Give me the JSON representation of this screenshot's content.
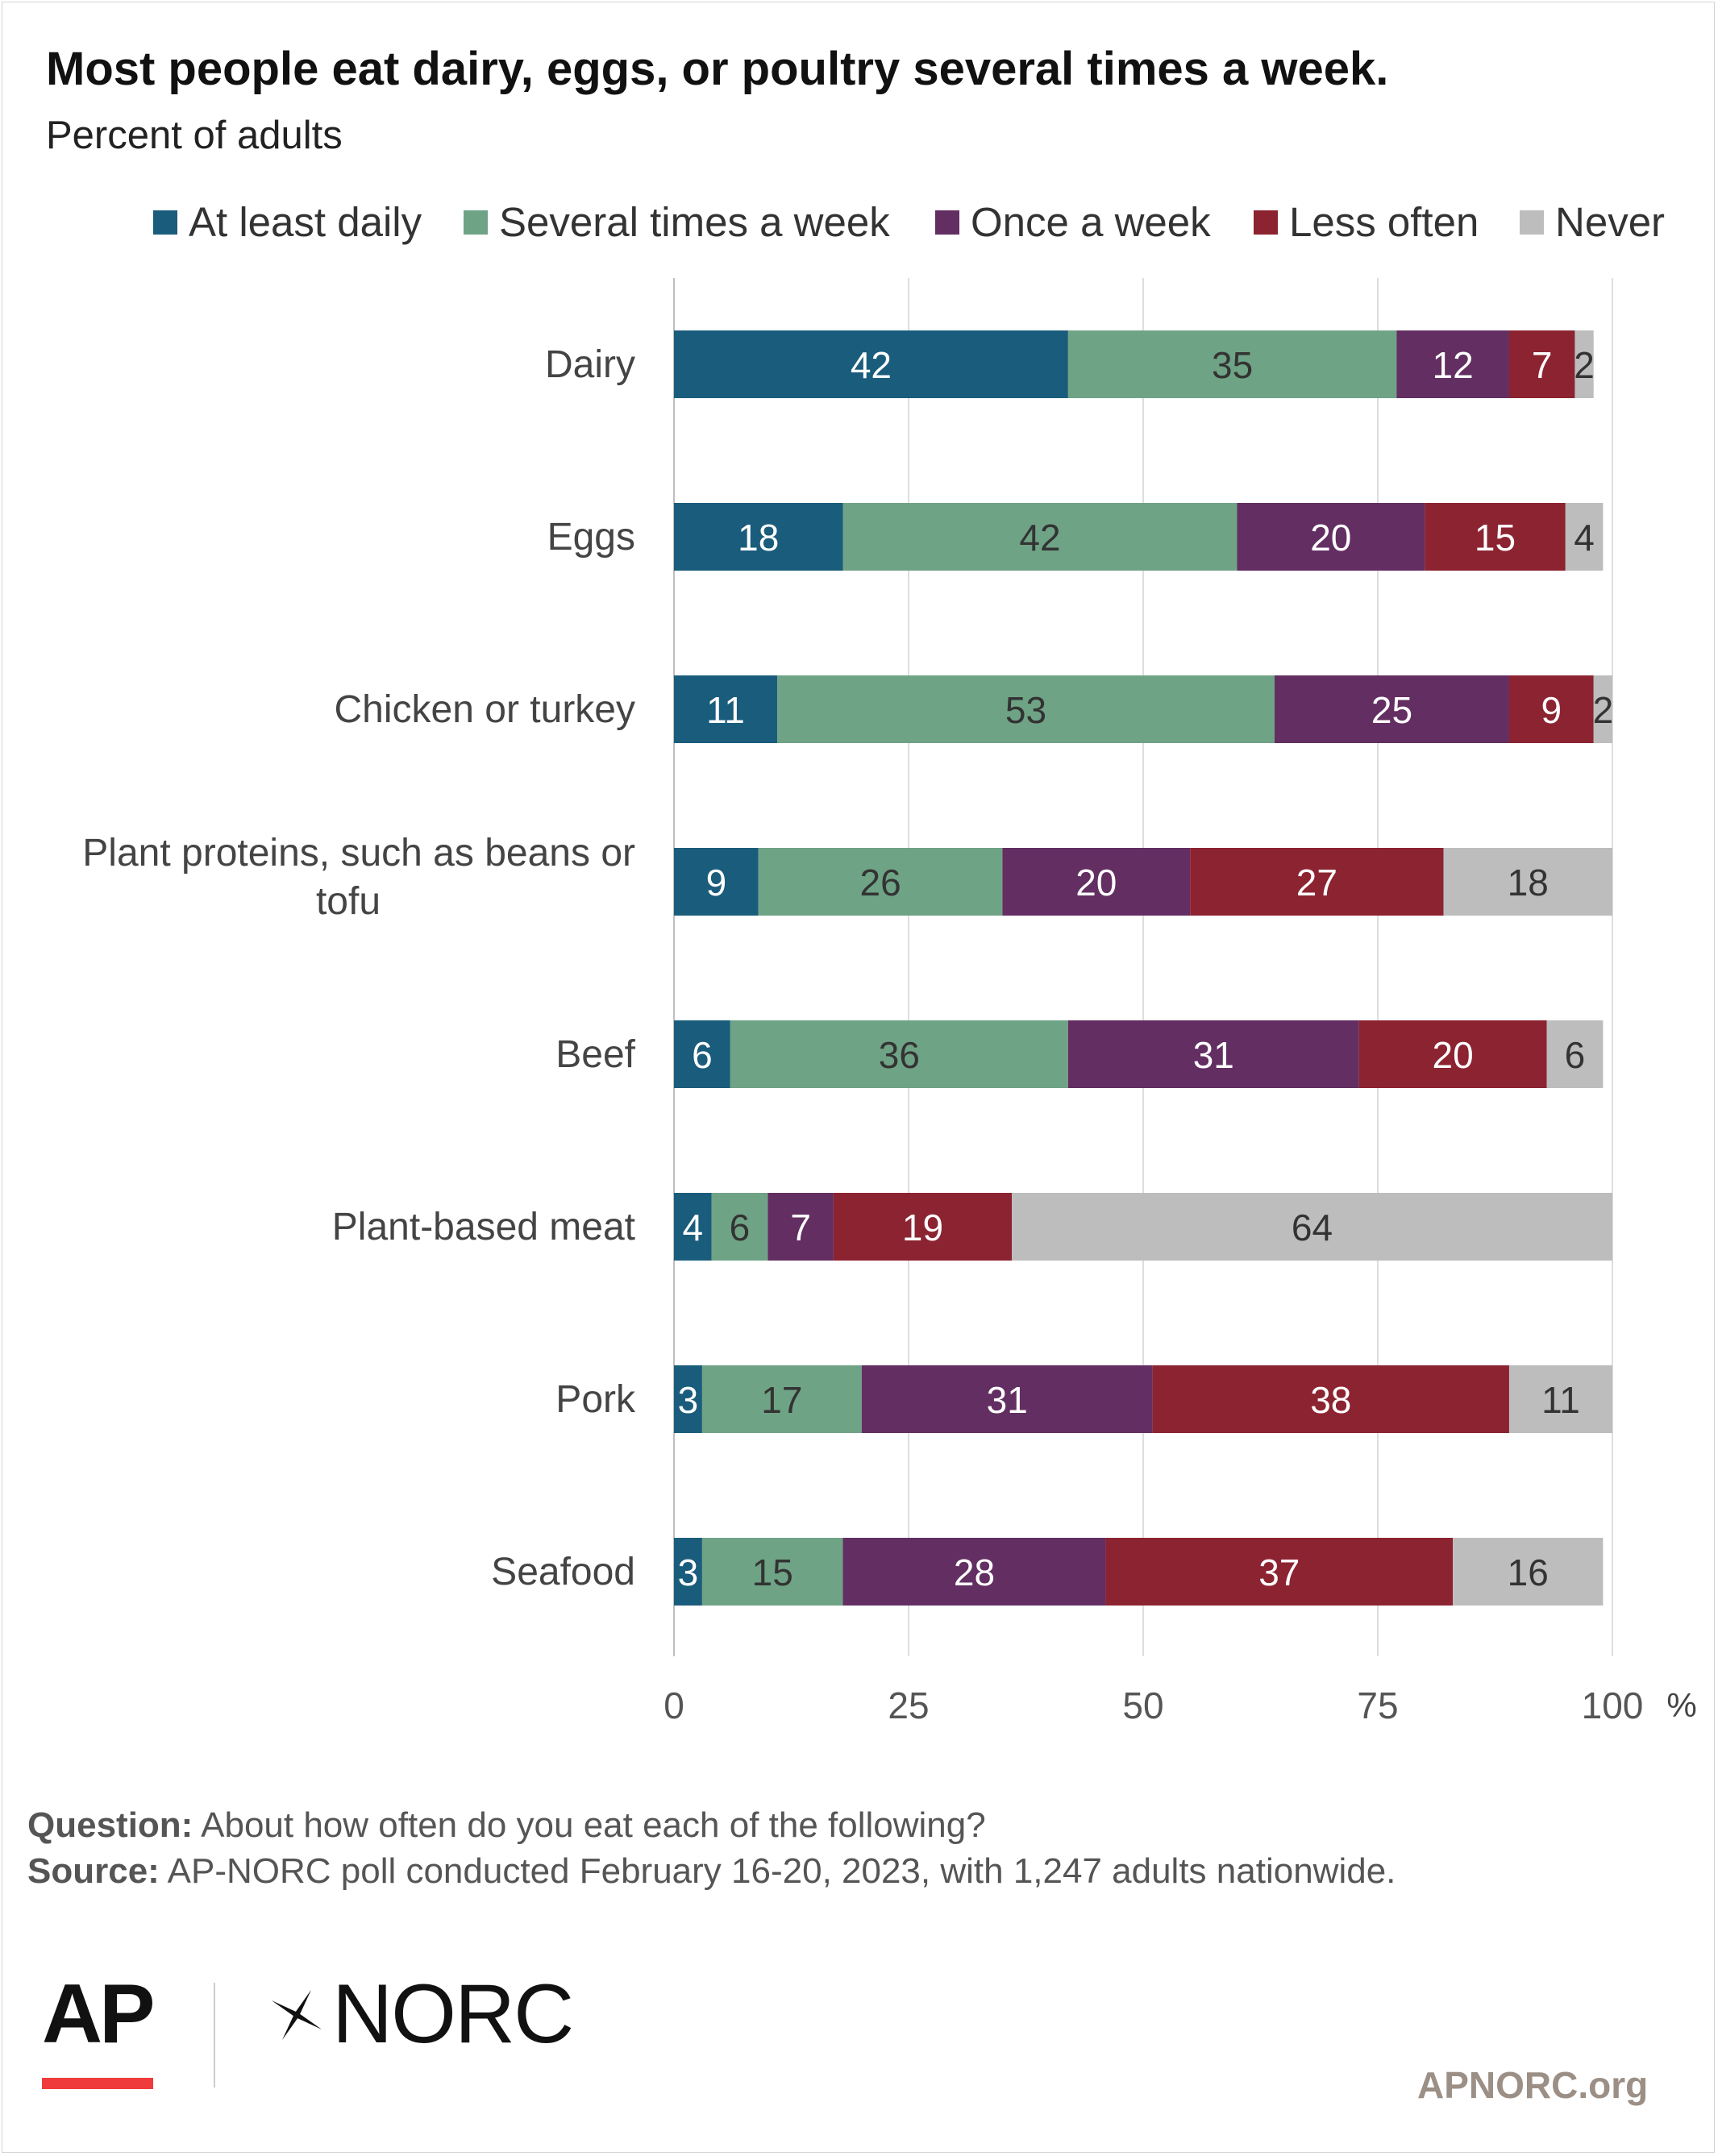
{
  "title": "Most people eat dairy, eggs, or poultry several times a week.",
  "subtitle": "Percent of adults",
  "footer": {
    "question_label": "Question:",
    "question_text": "About how often do you eat each of the following?",
    "source_label": "Source:",
    "source_text": "AP-NORC poll conducted February 16-20, 2023, with 1,247 adults nationwide.",
    "logo_ap": "AP",
    "logo_norc": "NORC",
    "site": "APNORC.org"
  },
  "chart_data": {
    "type": "bar",
    "orientation": "horizontal",
    "stacked": true,
    "categories": [
      "Dairy",
      "Eggs",
      "Chicken or turkey",
      "Plant proteins, such as beans or tofu",
      "Beef",
      "Plant-based meat",
      "Pork",
      "Seafood"
    ],
    "series": [
      {
        "name": "At least daily",
        "color": "#1a5c7c",
        "values": [
          42,
          18,
          11,
          9,
          6,
          4,
          3,
          3
        ]
      },
      {
        "name": "Several times a week",
        "color": "#6fa386",
        "values": [
          35,
          42,
          53,
          26,
          36,
          6,
          17,
          15
        ]
      },
      {
        "name": "Once a week",
        "color": "#632e62",
        "values": [
          12,
          20,
          25,
          20,
          31,
          7,
          31,
          28
        ]
      },
      {
        "name": "Less often",
        "color": "#8c2331",
        "values": [
          7,
          15,
          9,
          27,
          20,
          19,
          38,
          37
        ]
      },
      {
        "name": "Never",
        "color": "#bdbdbd",
        "values": [
          2,
          4,
          2,
          18,
          6,
          64,
          11,
          16
        ]
      }
    ],
    "xlim": [
      0,
      100
    ],
    "xticks": [
      0,
      25,
      50,
      75,
      100
    ],
    "xunit": "%",
    "grid": true,
    "legend_position": "top"
  }
}
